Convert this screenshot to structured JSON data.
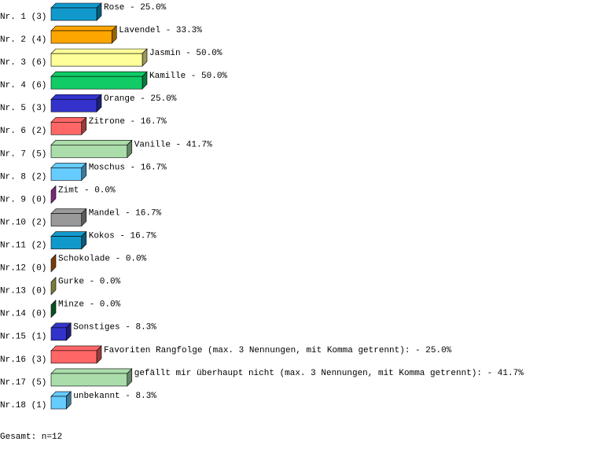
{
  "chart_data": {
    "type": "bar",
    "orientation": "horizontal",
    "categories": [
      "Nr. 1 (3)",
      "Nr. 2 (4)",
      "Nr. 3 (6)",
      "Nr. 4 (6)",
      "Nr. 5 (3)",
      "Nr. 6 (2)",
      "Nr. 7 (5)",
      "Nr. 8 (2)",
      "Nr. 9 (0)",
      "Nr.10 (2)",
      "Nr.11 (2)",
      "Nr.12 (0)",
      "Nr.13 (0)",
      "Nr.14 (0)",
      "Nr.15 (1)",
      "Nr.16 (3)",
      "Nr.17 (5)",
      "Nr.18 (1)"
    ],
    "values": [
      25.0,
      33.3,
      50.0,
      50.0,
      25.0,
      16.7,
      41.7,
      16.7,
      0.0,
      16.7,
      16.7,
      0.0,
      0.0,
      0.0,
      8.3,
      25.0,
      41.7,
      8.3
    ],
    "value_labels": [
      "Rose -  25.0%",
      "Lavendel -  33.3%",
      "Jasmin -  50.0%",
      "Kamille -  50.0%",
      "Orange -  25.0%",
      "Zitrone -  16.7%",
      "Vanille -  41.7%",
      "Moschus -  16.7%",
      "Zimt -   0.0%",
      "Mandel -  16.7%",
      "Kokos -  16.7%",
      "Schokolade -   0.0%",
      "Gurke -   0.0%",
      "Minze -   0.0%",
      "Sonstiges -   8.3%",
      "Favoriten Rangfolge (max. 3 Nennungen, mit Komma getrennt): -  25.0%",
      "gefällt mir überhaupt nicht (max. 3 Nennungen, mit Komma getrennt): -  41.7%",
      "unbekannt -   8.3%"
    ],
    "colors": [
      "#1199cc",
      "#ffa500",
      "#ffff99",
      "#11cc66",
      "#3333cc",
      "#ff6666",
      "#aaddaa",
      "#66ccff",
      "#cc44cc",
      "#999999",
      "#1199cc",
      "#cc6611",
      "#cccc66",
      "#118833",
      "#3333cc",
      "#ff6666",
      "#aaddaa",
      "#66ccff"
    ],
    "footer": "Gesamt: n=12"
  }
}
